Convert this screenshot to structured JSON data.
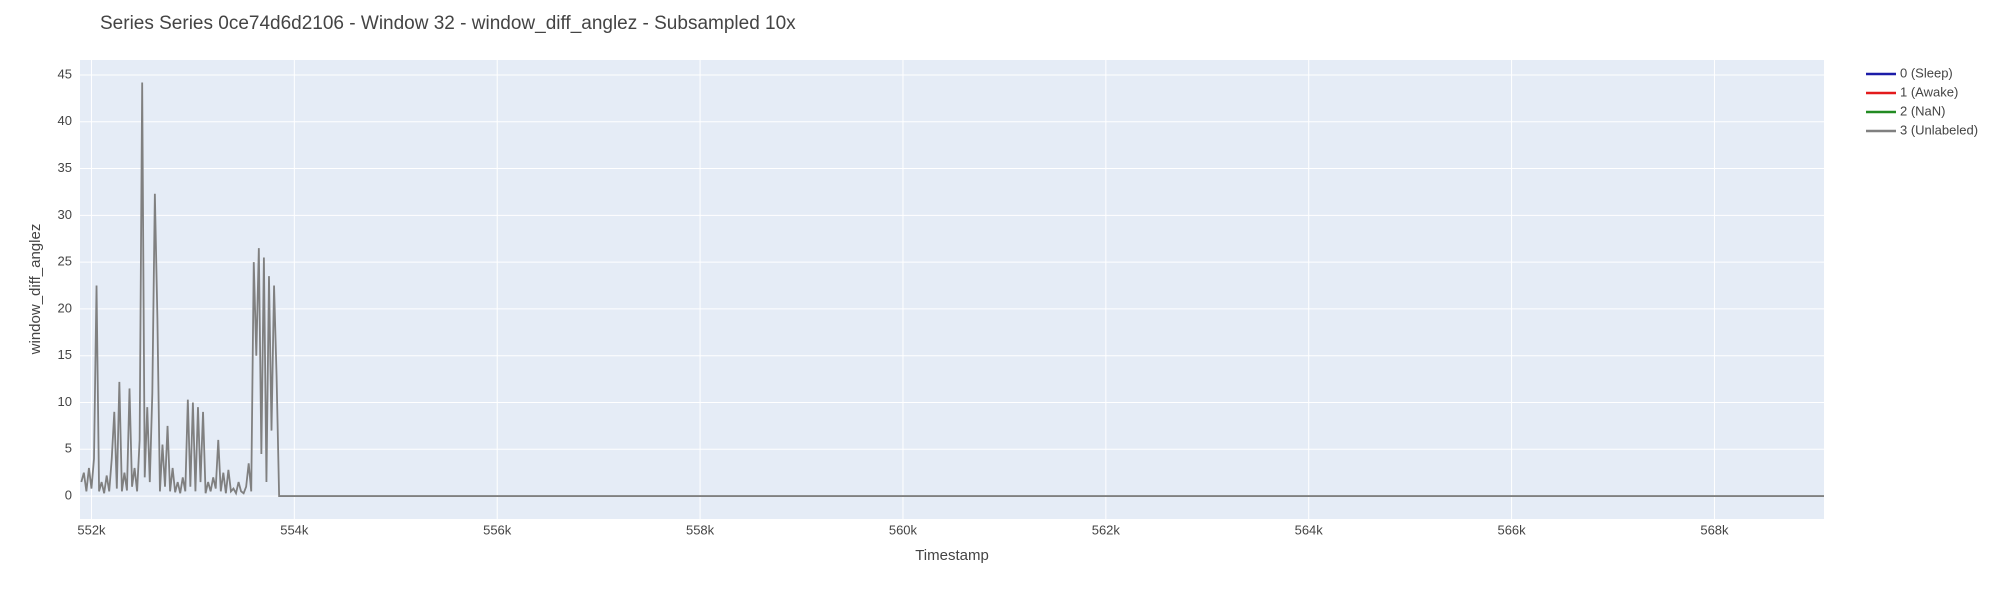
{
  "chart_data": {
    "type": "line",
    "title": "Series Series 0ce74d6d2106 - Window 32 - window_diff_anglez - Subsampled 10x",
    "x_label": "Timestamp",
    "y_label": "window_diff_anglez",
    "x": [
      551900,
      551925,
      551950,
      551975,
      552000,
      552025,
      552050,
      552075,
      552100,
      552125,
      552150,
      552175,
      552200,
      552225,
      552250,
      552275,
      552300,
      552325,
      552350,
      552375,
      552400,
      552425,
      552450,
      552475,
      552500,
      552525,
      552550,
      552575,
      552600,
      552625,
      552650,
      552675,
      552700,
      552725,
      552750,
      552775,
      552800,
      552825,
      552850,
      552875,
      552900,
      552925,
      552950,
      552975,
      553000,
      553025,
      553050,
      553075,
      553100,
      553125,
      553150,
      553175,
      553200,
      553225,
      553250,
      553275,
      553300,
      553325,
      553350,
      553375,
      553400,
      553425,
      553450,
      553475,
      553500,
      553525,
      553550,
      553575,
      553600,
      553625,
      553650,
      553675,
      553700,
      553725,
      553750,
      553775,
      553800,
      553825,
      553850,
      569080
    ],
    "series": [
      {
        "name": "0 (Sleep)",
        "color": "#1c1ca8",
        "values": [
          null,
          null,
          null,
          null,
          null,
          null,
          null,
          null,
          null,
          null,
          null,
          null,
          null,
          null,
          null,
          null,
          null,
          null,
          null,
          null,
          null,
          null,
          null,
          null,
          null,
          null,
          null,
          null,
          null,
          null,
          null,
          null,
          null,
          null,
          null,
          null,
          null,
          null,
          null,
          null,
          null,
          null,
          null,
          null,
          null,
          null,
          null,
          null,
          null,
          null,
          null,
          null,
          null,
          null,
          null,
          null,
          null,
          null,
          null,
          null,
          null,
          null,
          null,
          null,
          null,
          null,
          null,
          null,
          null,
          null,
          null,
          null,
          null,
          null,
          null,
          null,
          null,
          null,
          null,
          null
        ]
      },
      {
        "name": "1 (Awake)",
        "color": "#e31a1c",
        "values": [
          null,
          null,
          null,
          null,
          null,
          null,
          null,
          null,
          null,
          null,
          null,
          null,
          null,
          null,
          null,
          null,
          null,
          null,
          null,
          null,
          null,
          null,
          null,
          null,
          null,
          null,
          null,
          null,
          null,
          null,
          null,
          null,
          null,
          null,
          null,
          null,
          null,
          null,
          null,
          null,
          null,
          null,
          null,
          null,
          null,
          null,
          null,
          null,
          null,
          null,
          null,
          null,
          null,
          null,
          null,
          null,
          null,
          null,
          null,
          null,
          null,
          null,
          null,
          null,
          null,
          null,
          null,
          null,
          null,
          null,
          null,
          null,
          null,
          null,
          null,
          null,
          null,
          null,
          null,
          null
        ]
      },
      {
        "name": "2 (NaN)",
        "color": "#228b22",
        "values": [
          null,
          null,
          null,
          null,
          null,
          null,
          null,
          null,
          null,
          null,
          null,
          null,
          null,
          null,
          null,
          null,
          null,
          null,
          null,
          null,
          null,
          null,
          null,
          null,
          null,
          null,
          null,
          null,
          null,
          null,
          null,
          null,
          null,
          null,
          null,
          null,
          null,
          null,
          null,
          null,
          null,
          null,
          null,
          null,
          null,
          null,
          null,
          null,
          null,
          null,
          null,
          null,
          null,
          null,
          null,
          null,
          null,
          null,
          null,
          null,
          null,
          null,
          null,
          null,
          null,
          null,
          null,
          null,
          null,
          null,
          null,
          null,
          null,
          null,
          null,
          null,
          null,
          null,
          null,
          null
        ]
      },
      {
        "name": "3 (Unlabeled)",
        "color": "#808080",
        "values": [
          1.5,
          2.5,
          0.5,
          3,
          0.8,
          4,
          22.5,
          0.5,
          1.5,
          0.3,
          2.2,
          0.5,
          4,
          9,
          0.8,
          12.2,
          0.5,
          2.5,
          0.6,
          11.5,
          1,
          3,
          0.5,
          6,
          44.2,
          2,
          9.5,
          1.5,
          11,
          32.3,
          19,
          0.5,
          5.5,
          1,
          7.5,
          0.5,
          3,
          0.4,
          1.5,
          0.3,
          2,
          0.5,
          10.3,
          1,
          10,
          0.5,
          9.5,
          1.5,
          9,
          0.3,
          1.5,
          0.5,
          2,
          0.8,
          6,
          0.5,
          2.5,
          0.3,
          2.8,
          0.5,
          0.8,
          0.3,
          1.5,
          0.5,
          0.3,
          1,
          3.5,
          0.5,
          25,
          15,
          26.5,
          4.5,
          25.5,
          1.5,
          23.5,
          7,
          22.5,
          12.8,
          0,
          0
        ]
      }
    ],
    "xlim": [
      551887,
      569080
    ],
    "ylim": [
      -2.45,
      46.6
    ],
    "xticks": [
      {
        "value": 552000,
        "label": "552k"
      },
      {
        "value": 554000,
        "label": "554k"
      },
      {
        "value": 556000,
        "label": "556k"
      },
      {
        "value": 558000,
        "label": "558k"
      },
      {
        "value": 560000,
        "label": "560k"
      },
      {
        "value": 562000,
        "label": "562k"
      },
      {
        "value": 564000,
        "label": "564k"
      },
      {
        "value": 566000,
        "label": "566k"
      },
      {
        "value": 568000,
        "label": "568k"
      }
    ],
    "yticks": [
      0,
      5,
      10,
      15,
      20,
      25,
      30,
      35,
      40,
      45
    ],
    "grid": true
  }
}
